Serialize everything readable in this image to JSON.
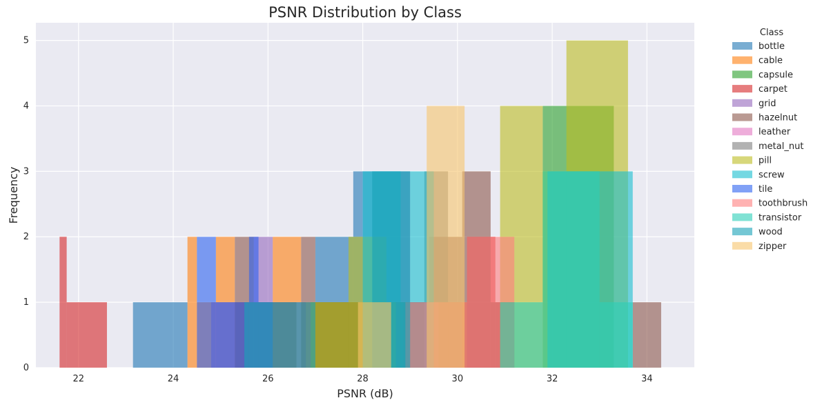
{
  "chart_data": {
    "type": "bar",
    "title": "PSNR Distribution by Class",
    "xlabel": "PSNR (dB)",
    "ylabel": "Frequency",
    "xlim": [
      21.1,
      35.0
    ],
    "ylim": [
      0,
      5.27
    ],
    "xticks": [
      "22",
      "24",
      "26",
      "28",
      "30",
      "32",
      "34"
    ],
    "yticks": [
      "0",
      "1",
      "2",
      "3",
      "4",
      "5"
    ],
    "grid": true,
    "legend_title": "Class",
    "legend_position": "outside-right",
    "series": [
      {
        "name": "bottle",
        "color": "#1f77b4",
        "bins": [
          [
            23.15,
            24.3,
            1
          ],
          [
            27.0,
            27.8,
            2
          ],
          [
            27.8,
            29.0,
            3
          ],
          [
            29.0,
            29.3,
            1
          ]
        ]
      },
      {
        "name": "cable",
        "color": "#ff7f0e",
        "bins": [
          [
            24.3,
            24.5,
            2
          ],
          [
            24.5,
            24.9,
            1
          ],
          [
            24.9,
            25.3,
            2
          ],
          [
            25.3,
            26.1,
            1
          ],
          [
            26.1,
            26.7,
            2
          ],
          [
            26.7,
            28.8,
            1
          ],
          [
            29.0,
            30.2,
            1
          ]
        ]
      },
      {
        "name": "capsule",
        "color": "#2ca02c",
        "bins": [
          [
            26.9,
            29.4,
            1
          ],
          [
            31.8,
            33.3,
            4
          ]
        ]
      },
      {
        "name": "carpet",
        "color": "#d62728",
        "bins": [
          [
            21.6,
            21.75,
            2
          ],
          [
            21.75,
            22.6,
            1
          ],
          [
            28.85,
            29.45,
            1
          ],
          [
            30.2,
            30.8,
            2
          ],
          [
            30.8,
            31.2,
            1
          ]
        ]
      },
      {
        "name": "grid",
        "color": "#9467bd",
        "bins": [
          [
            24.8,
            25.7,
            1
          ],
          [
            25.7,
            26.1,
            2
          ],
          [
            26.1,
            26.8,
            1
          ]
        ]
      },
      {
        "name": "hazelnut",
        "color": "#8c564b",
        "bins": [
          [
            25.3,
            25.7,
            2
          ],
          [
            25.7,
            26.6,
            1
          ],
          [
            26.7,
            27.0,
            2
          ],
          [
            27.0,
            29.4,
            1
          ],
          [
            29.4,
            30.1,
            2
          ],
          [
            30.1,
            30.7,
            3
          ],
          [
            30.7,
            31.2,
            1
          ],
          [
            33.7,
            34.3,
            1
          ]
        ]
      },
      {
        "name": "leather",
        "color": "#e377c2",
        "bins": [
          [
            29.3,
            29.6,
            1
          ]
        ]
      },
      {
        "name": "metal_nut",
        "color": "#7f7f7f",
        "bins": [
          [
            28.7,
            29.3,
            1
          ],
          [
            29.3,
            29.8,
            3
          ],
          [
            29.8,
            30.1,
            1
          ]
        ]
      },
      {
        "name": "pill",
        "color": "#bcbd22",
        "bins": [
          [
            26.9,
            27.7,
            1
          ],
          [
            27.7,
            28.5,
            2
          ],
          [
            28.5,
            28.7,
            1
          ],
          [
            30.9,
            31.8,
            4
          ],
          [
            31.8,
            32.3,
            3
          ],
          [
            32.3,
            33.6,
            5
          ]
        ]
      },
      {
        "name": "screw",
        "color": "#17becf",
        "bins": [
          [
            28.0,
            28.8,
            3
          ],
          [
            28.8,
            29.0,
            1
          ],
          [
            29.0,
            29.5,
            3
          ],
          [
            31.9,
            33.7,
            3
          ]
        ]
      },
      {
        "name": "tile",
        "color": "#2d63f0",
        "bins": [
          [
            24.5,
            24.9,
            2
          ],
          [
            24.9,
            25.3,
            1
          ],
          [
            25.3,
            25.6,
            1
          ],
          [
            25.6,
            25.8,
            2
          ],
          [
            25.8,
            26.1,
            1
          ]
        ]
      },
      {
        "name": "toothbrush",
        "color": "#ff7f7f",
        "bins": [
          [
            28.9,
            30.2,
            1
          ],
          [
            30.2,
            31.2,
            2
          ]
        ]
      },
      {
        "name": "transistor",
        "color": "#2ccfb8",
        "bins": [
          [
            30.9,
            31.8,
            1
          ],
          [
            31.8,
            33.0,
            3
          ],
          [
            33.0,
            33.7,
            1
          ]
        ]
      },
      {
        "name": "wood",
        "color": "#17a2b8",
        "bins": [
          [
            25.5,
            27.0,
            1
          ],
          [
            28.2,
            29.0,
            3
          ]
        ]
      },
      {
        "name": "zipper",
        "color": "#f7c46c",
        "bins": [
          [
            27.9,
            28.6,
            1
          ],
          [
            29.35,
            30.15,
            4
          ]
        ]
      }
    ]
  }
}
